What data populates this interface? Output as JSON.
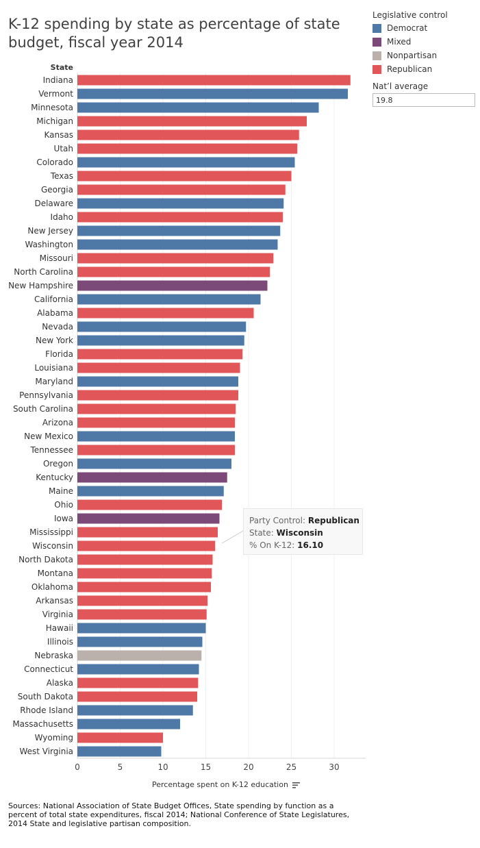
{
  "title": "K-12 spending by state as percentage of state budget, fiscal year 2014",
  "legend": {
    "title": "Legislative control",
    "items": [
      {
        "label": "Democrat",
        "color": "#4e79a7"
      },
      {
        "label": "Mixed",
        "color": "#7b4a78"
      },
      {
        "label": "Nonpartisan",
        "color": "#bab0ac"
      },
      {
        "label": "Republican",
        "color": "#e15759"
      }
    ]
  },
  "national_average": {
    "title": "Nat’l average",
    "value": "19.8"
  },
  "tooltip": {
    "party_key": "Party Control:",
    "party_val": "Republican",
    "state_key": "State:",
    "state_val": "Wisconsin",
    "pct_key": "% On K-12:",
    "pct_val": "16.10"
  },
  "sources": "Sources: National Association of State Budget Offices, State spending by function as a percent of total state expenditures, fiscal 2014; National Conference of State Legislatures, 2014 State and legislative partisan composition.",
  "chart_data": {
    "type": "bar",
    "orientation": "horizontal",
    "title": "K-12 spending by state as percentage of state budget, fiscal year 2014",
    "category_label": "State",
    "xlabel": "Percentage spent on K-12 education",
    "xlim": [
      0,
      33.5
    ],
    "xticks": [
      0,
      5,
      10,
      15,
      20,
      25,
      30
    ],
    "categories": [
      "Indiana",
      "Vermont",
      "Minnesota",
      "Michigan",
      "Kansas",
      "Utah",
      "Colorado",
      "Texas",
      "Georgia",
      "Delaware",
      "Idaho",
      "New Jersey",
      "Washington",
      "Missouri",
      "North Carolina",
      "New Hampshire",
      "California",
      "Alabama",
      "Nevada",
      "New York",
      "Florida",
      "Louisiana",
      "Maryland",
      "Pennsylvania",
      "South Carolina",
      "Arizona",
      "New Mexico",
      "Tennessee",
      "Oregon",
      "Kentucky",
      "Maine",
      "Ohio",
      "Iowa",
      "Mississippi",
      "Wisconsin",
      "North Dakota",
      "Montana",
      "Oklahoma",
      "Arkansas",
      "Virginia",
      "Hawaii",
      "Illinois",
      "Nebraska",
      "Connecticut",
      "Alaska",
      "South Dakota",
      "Rhode Island",
      "Massachusetts",
      "Wyoming",
      "West Virginia"
    ],
    "values": [
      31.9,
      31.6,
      28.2,
      26.8,
      25.9,
      25.7,
      25.4,
      25.0,
      24.3,
      24.1,
      24.0,
      23.7,
      23.4,
      22.9,
      22.5,
      22.2,
      21.4,
      20.6,
      19.7,
      19.5,
      19.3,
      19.0,
      18.8,
      18.8,
      18.5,
      18.4,
      18.4,
      18.4,
      18.0,
      17.5,
      17.1,
      16.9,
      16.6,
      16.4,
      16.1,
      15.8,
      15.7,
      15.6,
      15.2,
      15.1,
      15.0,
      14.6,
      14.5,
      14.2,
      14.1,
      14.0,
      13.5,
      12.0,
      10.0,
      9.8
    ],
    "control": [
      "Republican",
      "Democrat",
      "Democrat",
      "Republican",
      "Republican",
      "Republican",
      "Democrat",
      "Republican",
      "Republican",
      "Democrat",
      "Republican",
      "Democrat",
      "Democrat",
      "Republican",
      "Republican",
      "Mixed",
      "Democrat",
      "Republican",
      "Democrat",
      "Democrat",
      "Republican",
      "Republican",
      "Democrat",
      "Republican",
      "Republican",
      "Republican",
      "Democrat",
      "Republican",
      "Democrat",
      "Mixed",
      "Democrat",
      "Republican",
      "Mixed",
      "Republican",
      "Republican",
      "Republican",
      "Republican",
      "Republican",
      "Republican",
      "Republican",
      "Democrat",
      "Democrat",
      "Nonpartisan",
      "Democrat",
      "Republican",
      "Republican",
      "Democrat",
      "Democrat",
      "Republican",
      "Democrat"
    ]
  }
}
